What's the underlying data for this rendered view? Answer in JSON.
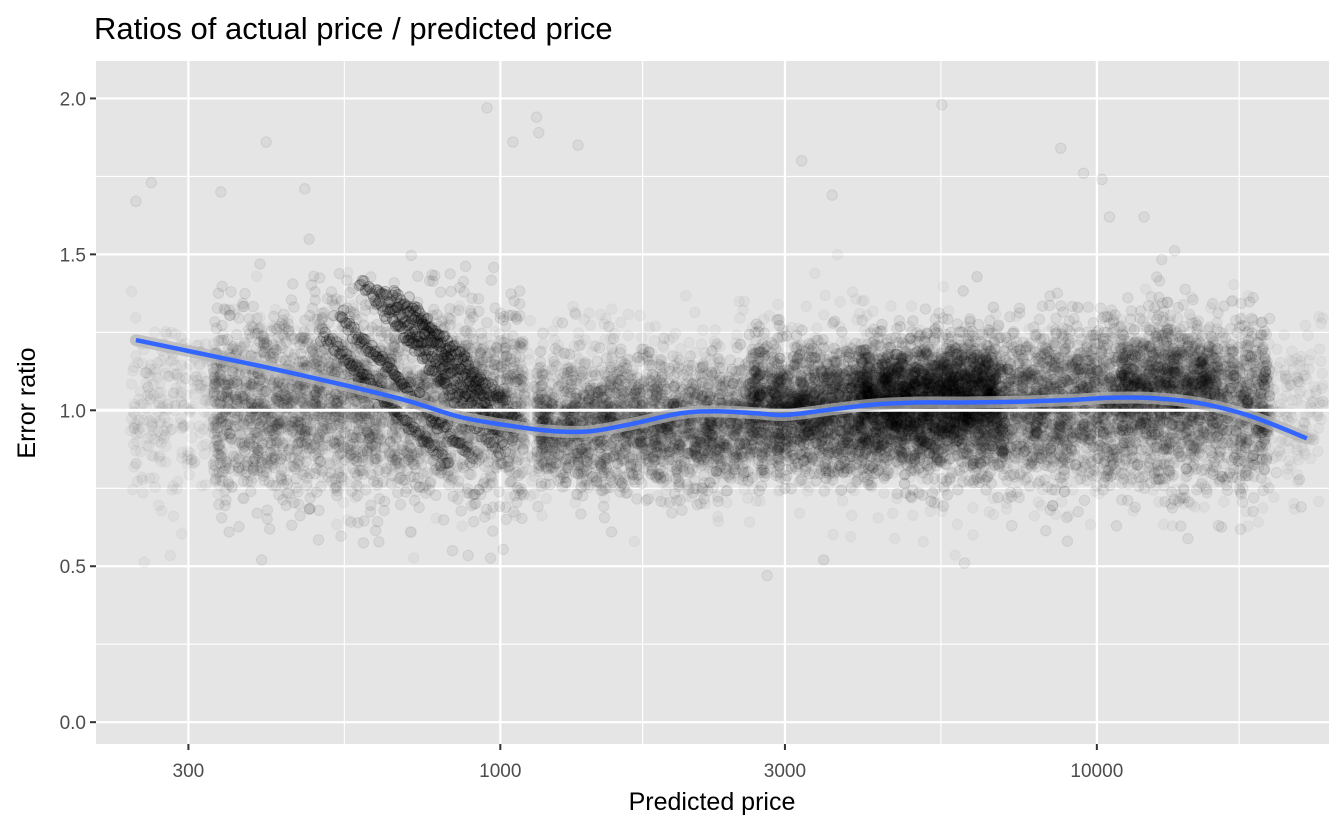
{
  "chart_data": {
    "type": "scatter",
    "title": "Ratios of actual price / predicted price",
    "xlabel": "Predicted price",
    "ylabel": "Error ratio",
    "x_scale": "log10",
    "xlim": [
      210,
      24500
    ],
    "ylim": [
      -0.07,
      2.12
    ],
    "x_ticks": [
      300,
      1000,
      3000,
      10000
    ],
    "x_tick_labels": [
      "300",
      "1000",
      "3000",
      "10000"
    ],
    "x_minor_gridlines": [
      547.7,
      1732,
      5477,
      17320
    ],
    "y_ticks": [
      0.0,
      0.5,
      1.0,
      1.5,
      2.0
    ],
    "y_tick_labels": [
      "0.0",
      "0.5",
      "1.0",
      "1.5",
      "2.0"
    ],
    "reference_line": {
      "y": 1.0,
      "color": "#ffffff"
    },
    "point_color": "#000000",
    "point_opacity": 0.04,
    "grid": true,
    "panel_background": "#e5e5e5",
    "smooth": {
      "method": "loess",
      "color": "#3366ff",
      "ribbon_color": "#b3b3b3",
      "x": [
        245,
        300,
        400,
        550,
        700,
        850,
        1000,
        1200,
        1400,
        1650,
        2000,
        2300,
        2700,
        3000,
        3500,
        4200,
        5000,
        6000,
        7500,
        9000,
        10500,
        12000,
        14000,
        16000,
        18500,
        22500
      ],
      "y": [
        1.225,
        1.19,
        1.14,
        1.08,
        1.03,
        0.98,
        0.955,
        0.935,
        0.932,
        0.955,
        0.99,
        0.997,
        0.99,
        0.985,
        1.0,
        1.018,
        1.025,
        1.025,
        1.028,
        1.033,
        1.04,
        1.04,
        1.03,
        1.01,
        0.975,
        0.91
      ]
    },
    "density_clouds": [
      {
        "x_range": [
          240,
          24000
        ],
        "y_center": 1.0,
        "y_spread": 0.14,
        "count": 3200,
        "opacity": 0.03
      },
      {
        "x_range": [
          330,
          1100
        ],
        "y_center": 1.02,
        "y_spread": 0.16,
        "count": 2200,
        "opacity": 0.06
      },
      {
        "x_range": [
          1150,
          2600
        ],
        "y_center": 0.95,
        "y_spread": 0.1,
        "count": 1800,
        "opacity": 0.06
      },
      {
        "x_range": [
          2600,
          7000
        ],
        "y_center": 1.0,
        "y_spread": 0.1,
        "count": 3200,
        "opacity": 0.07
      },
      {
        "x_range": [
          4000,
          6800
        ],
        "y_center": 1.07,
        "y_spread": 0.08,
        "count": 1200,
        "opacity": 0.06
      },
      {
        "x_range": [
          7000,
          19500
        ],
        "y_center": 1.02,
        "y_spread": 0.13,
        "count": 2600,
        "opacity": 0.06
      },
      {
        "x_range": [
          11000,
          16000
        ],
        "y_center": 1.1,
        "y_spread": 0.08,
        "count": 600,
        "opacity": 0.05
      }
    ],
    "diagonal_bands": [
      {
        "x_start": 580,
        "y_start": 1.42,
        "x_end": 1000,
        "y_end": 0.86
      },
      {
        "x_start": 620,
        "y_start": 1.4,
        "x_end": 1020,
        "y_end": 0.9
      },
      {
        "x_start": 660,
        "y_start": 1.38,
        "x_end": 1050,
        "y_end": 0.92
      },
      {
        "x_start": 540,
        "y_start": 1.3,
        "x_end": 900,
        "y_end": 0.84
      },
      {
        "x_start": 500,
        "y_start": 1.25,
        "x_end": 820,
        "y_end": 0.82
      },
      {
        "x_start": 700,
        "y_start": 1.34,
        "x_end": 1100,
        "y_end": 0.95
      }
    ],
    "outliers": [
      [
        245,
        1.67
      ],
      [
        260,
        1.73
      ],
      [
        340,
        1.7
      ],
      [
        405,
        1.86
      ],
      [
        470,
        1.71
      ],
      [
        950,
        1.97
      ],
      [
        1050,
        1.86
      ],
      [
        1150,
        1.94
      ],
      [
        1160,
        1.89
      ],
      [
        1350,
        1.85
      ],
      [
        3200,
        1.8
      ],
      [
        3600,
        1.69
      ],
      [
        5500,
        1.98
      ],
      [
        8700,
        1.84
      ],
      [
        9500,
        1.76
      ],
      [
        10200,
        1.74
      ],
      [
        10500,
        1.62
      ],
      [
        12000,
        1.62
      ],
      [
        6000,
        0.51
      ],
      [
        2800,
        0.47
      ],
      [
        22000,
        0.69
      ],
      [
        20000,
        0.8
      ],
      [
        16000,
        0.63
      ],
      [
        7200,
        0.63
      ]
    ]
  }
}
